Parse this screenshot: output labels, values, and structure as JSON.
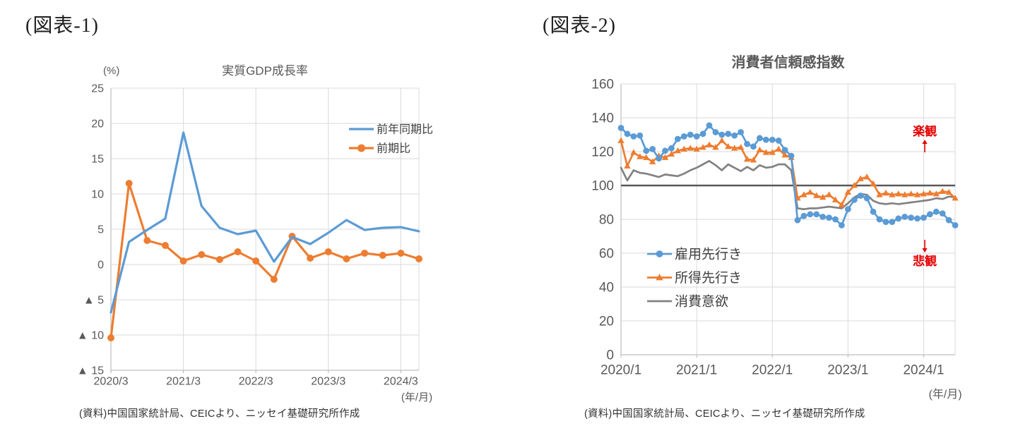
{
  "figures": [
    {
      "label": "(図表-1)",
      "source": "(資料)中国国家統計局、CEICより、ニッセイ基礎研究所作成"
    },
    {
      "label": "(図表-2)",
      "source": "(資料)中国国家統計局、CEICより、ニッセイ基礎研究所作成"
    }
  ],
  "chart_data": [
    {
      "type": "line",
      "title": "実質GDP成長率",
      "unit_label": "(%)",
      "xlabel": "(年/月)",
      "x": [
        "2020/3",
        "2020/6",
        "2020/9",
        "2020/12",
        "2021/3",
        "2021/6",
        "2021/9",
        "2021/12",
        "2022/3",
        "2022/6",
        "2022/9",
        "2022/12",
        "2023/3",
        "2023/6",
        "2023/9",
        "2023/12",
        "2024/3",
        "2024/6"
      ],
      "x_tick_labels": [
        "2020/3",
        "2021/3",
        "2022/3",
        "2023/3",
        "2024/3"
      ],
      "x_tick_index": [
        0,
        4,
        8,
        12,
        16
      ],
      "ylim": [
        -15,
        25
      ],
      "yticks": [
        25,
        20,
        15,
        10,
        5,
        0,
        -5,
        -10,
        -15
      ],
      "ytick_labels": [
        "25",
        "20",
        "15",
        "10",
        "5",
        "0",
        "▲ 5",
        "▲ 10",
        "▲ 15"
      ],
      "grid": true,
      "legend_position": "inside-top-right",
      "series": [
        {
          "name": "前年同期比",
          "color": "#5B9BD5",
          "marker": "none",
          "values": [
            -6.8,
            3.2,
            4.9,
            6.5,
            18.7,
            8.3,
            5.2,
            4.3,
            4.8,
            0.4,
            3.9,
            2.9,
            4.5,
            6.3,
            4.9,
            5.2,
            5.3,
            4.7
          ]
        },
        {
          "name": "前期比",
          "color": "#ED7D31",
          "marker": "circle",
          "values": [
            -10.4,
            11.5,
            3.4,
            2.7,
            0.5,
            1.4,
            0.7,
            1.8,
            0.5,
            -2.1,
            4.0,
            0.9,
            1.8,
            0.8,
            1.6,
            1.3,
            1.6,
            0.8
          ]
        }
      ]
    },
    {
      "type": "line",
      "title": "消費者信頼感指数",
      "xlabel": "(年/月)",
      "x": [
        "2020/1",
        "2020/2",
        "2020/3",
        "2020/4",
        "2020/5",
        "2020/6",
        "2020/7",
        "2020/8",
        "2020/9",
        "2020/10",
        "2020/11",
        "2020/12",
        "2021/1",
        "2021/2",
        "2021/3",
        "2021/4",
        "2021/5",
        "2021/6",
        "2021/7",
        "2021/8",
        "2021/9",
        "2021/10",
        "2021/11",
        "2021/12",
        "2022/1",
        "2022/2",
        "2022/3",
        "2022/4",
        "2022/5",
        "2022/6",
        "2022/7",
        "2022/8",
        "2022/9",
        "2022/10",
        "2022/11",
        "2022/12",
        "2023/1",
        "2023/2",
        "2023/3",
        "2023/4",
        "2023/5",
        "2023/6",
        "2023/7",
        "2023/8",
        "2023/9",
        "2023/10",
        "2023/11",
        "2023/12",
        "2024/1",
        "2024/2",
        "2024/3",
        "2024/4",
        "2024/5",
        "2024/6"
      ],
      "x_tick_labels": [
        "2020/1",
        "2021/1",
        "2022/1",
        "2023/1",
        "2024/1"
      ],
      "x_tick_index": [
        0,
        12,
        24,
        36,
        48
      ],
      "ylim": [
        0,
        160
      ],
      "yticks": [
        160,
        140,
        120,
        100,
        80,
        60,
        40,
        20,
        0
      ],
      "ytick_labels": [
        "160",
        "140",
        "120",
        "100",
        "80",
        "60",
        "40",
        "20",
        "0"
      ],
      "grid": true,
      "legend_position": "inside-left-middle",
      "reference_line": {
        "value": 100,
        "color": "#595959"
      },
      "annotations": [
        {
          "text": "楽観",
          "arrow": "up",
          "color": "#e60000"
        },
        {
          "text": "悲観",
          "arrow": "down",
          "color": "#e60000"
        }
      ],
      "series": [
        {
          "name": "雇用先行き",
          "color": "#5B9BD5",
          "marker": "circle",
          "values": [
            134,
            130.5,
            129,
            129.5,
            120.5,
            121.5,
            116,
            120.5,
            122,
            127.5,
            129,
            130,
            129,
            130.5,
            135.5,
            131.5,
            130,
            130.5,
            129.5,
            131.5,
            124.5,
            123,
            128,
            127,
            127,
            126.5,
            121,
            117.5,
            79.5,
            82,
            83,
            83,
            81.5,
            81,
            80,
            76.5,
            86,
            91.5,
            94,
            92.5,
            84.5,
            80,
            78.5,
            78.5,
            80.5,
            81.5,
            81,
            80.5,
            81,
            83,
            84.5,
            83.5,
            79.5,
            76.5
          ]
        },
        {
          "name": "所得先行き",
          "color": "#ED7D31",
          "marker": "triangle",
          "values": [
            126.5,
            111.5,
            119.5,
            117,
            116.5,
            114,
            117.5,
            116.5,
            118.5,
            120.5,
            121.5,
            122,
            121.5,
            122.5,
            124,
            122.5,
            126.5,
            123,
            122,
            122.5,
            115.5,
            115,
            121,
            119.5,
            119.5,
            121.5,
            118,
            116.5,
            92.5,
            94.5,
            96,
            94,
            93,
            94.5,
            91.5,
            88.5,
            96,
            100,
            104,
            105,
            101,
            94.5,
            95.5,
            94.5,
            95,
            94.5,
            95,
            94.5,
            95,
            95.5,
            95,
            96.5,
            96,
            92.5
          ]
        },
        {
          "name": "消費意欲",
          "color": "#828282",
          "marker": "none",
          "values": [
            110.5,
            103,
            109,
            107.5,
            107,
            106,
            105,
            106.5,
            106,
            105.5,
            107,
            109,
            110.5,
            112.5,
            114.5,
            112,
            109,
            112.5,
            110.5,
            108.5,
            111,
            109,
            112,
            110.5,
            111,
            112.5,
            112.5,
            109,
            86.5,
            86,
            86.5,
            86.5,
            87,
            87.5,
            87,
            86.5,
            89.5,
            93,
            95,
            94.5,
            91,
            89.5,
            89,
            89.5,
            89,
            89.5,
            90,
            90.5,
            91,
            91.5,
            92.5,
            92,
            93.5,
            93
          ]
        }
      ]
    }
  ],
  "style_colors": {
    "grid": "#D9D9D9",
    "axis": "#BFBFBF",
    "tick_text": "#595959",
    "legend_text": "#404040"
  }
}
